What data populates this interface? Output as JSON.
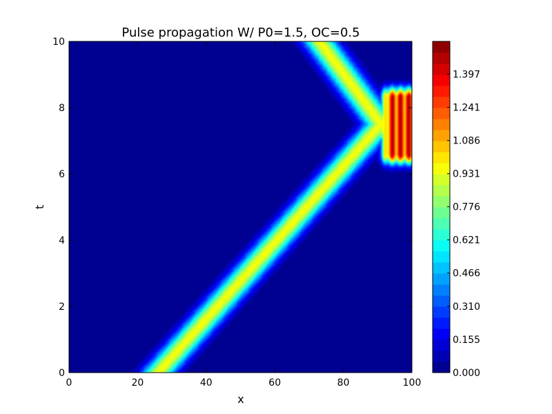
{
  "chart_data": {
    "type": "heatmap",
    "title": "Pulse propagation W/ P0=1.5, OC=0.5",
    "xlabel": "x",
    "ylabel": "t",
    "xlim": [
      0,
      100
    ],
    "ylim": [
      0,
      10
    ],
    "x_ticks": [
      "0",
      "20",
      "40",
      "60",
      "80",
      "100"
    ],
    "y_ticks": [
      "0",
      "2",
      "4",
      "6",
      "8",
      "10"
    ],
    "colorbar": {
      "range": [
        0,
        1.55
      ],
      "levels": 30,
      "tick_values": [
        0.0,
        0.155,
        0.31,
        0.466,
        0.621,
        0.776,
        0.931,
        1.086,
        1.241,
        1.397
      ],
      "tick_labels": [
        "0.000",
        "0.155",
        "0.310",
        "0.466",
        "0.621",
        "0.776",
        "0.931",
        "1.086",
        "1.241",
        "1.397"
      ],
      "colormap": "jet"
    },
    "pulse_paths": [
      {
        "points": [
          {
            "x": 26,
            "t": 0
          },
          {
            "x": 91,
            "t": 7.5
          }
        ],
        "peak": 0.95
      },
      {
        "points": [
          {
            "x": 91,
            "t": 7.5
          },
          {
            "x": 73,
            "t": 10
          }
        ],
        "peak": 0.95
      }
    ],
    "reflection_zone": {
      "x_range": [
        90,
        100
      ],
      "t_range": [
        6.6,
        8.3
      ],
      "peak": 1.5
    },
    "grid": false,
    "legend": "none"
  }
}
